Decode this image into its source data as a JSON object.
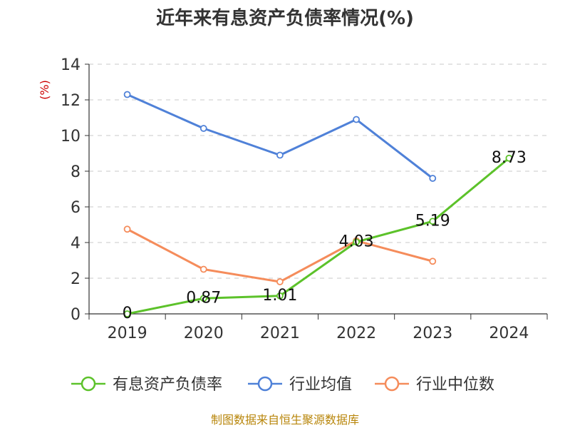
{
  "source_note": "制图数据来自恒生聚源数据库",
  "chart_data": {
    "type": "line",
    "title": "近年来有息资产负债率情况(%)",
    "ylabel": "(%)",
    "xlabel": "",
    "categories": [
      "2019",
      "2020",
      "2021",
      "2022",
      "2023",
      "2024"
    ],
    "ylim": [
      0,
      14
    ],
    "yticks": [
      0,
      2,
      4,
      6,
      8,
      10,
      12,
      14
    ],
    "grid": true,
    "legend_position": "bottom",
    "series": [
      {
        "name": "有息资产负债率",
        "color": "#5cc22a",
        "values": [
          0,
          0.87,
          1.01,
          4.03,
          5.19,
          8.73
        ],
        "labels": [
          "0",
          "0.87",
          "1.01",
          "4.03",
          "5.19",
          "8.73"
        ]
      },
      {
        "name": "行业均值",
        "color": "#4f81d8",
        "values": [
          12.3,
          10.4,
          8.9,
          10.9,
          7.6,
          null
        ],
        "labels": null
      },
      {
        "name": "行业中位数",
        "color": "#f58c5b",
        "values": [
          4.75,
          2.5,
          1.8,
          4.1,
          2.95,
          null
        ],
        "labels": null
      }
    ]
  }
}
